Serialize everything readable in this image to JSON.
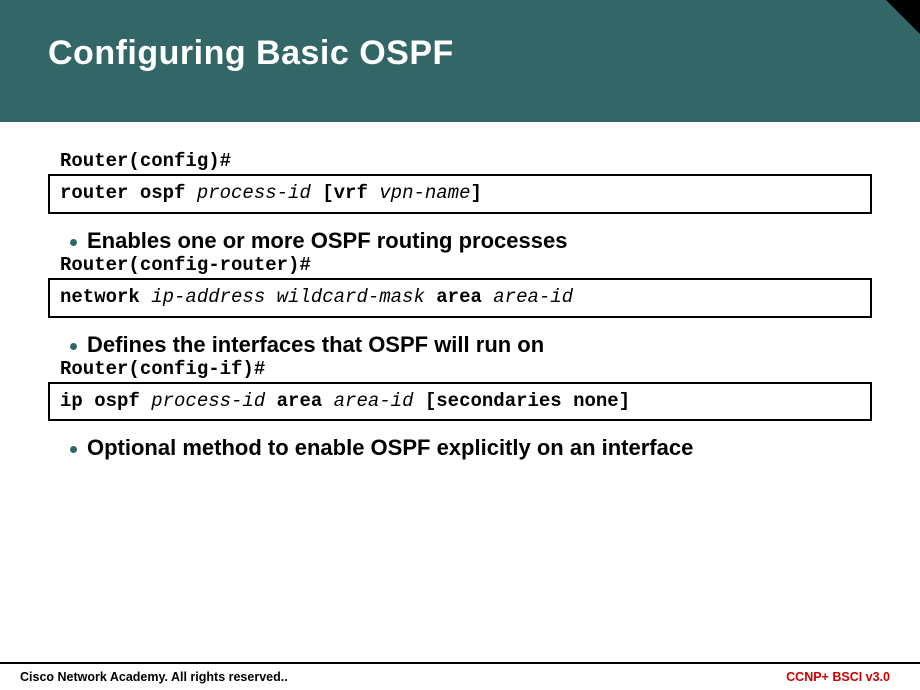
{
  "header": {
    "title": "Configuring  Basic OSPF"
  },
  "blocks": [
    {
      "prompt": "Router(config)#",
      "bullet": "Enables one or more OSPF routing processes"
    },
    {
      "prompt": "Router(config-router)#",
      "bullet": "Defines the interfaces that OSPF will run on"
    },
    {
      "prompt": "Router(config-if)#",
      "bullet": "Optional method to enable OSPF explicitly on an interface"
    }
  ],
  "commands": {
    "c1": {
      "p1": "router ospf ",
      "p2": "process-id ",
      "p3": "[vrf ",
      "p4": "vpn-name",
      "p5": "]"
    },
    "c2": {
      "p1": "network ",
      "p2": "ip-address wildcard-mask ",
      "p3": "area ",
      "p4": "area-id"
    },
    "c3": {
      "p1": "ip ospf ",
      "p2": "process-id ",
      "p3": "area ",
      "p4": "area-id ",
      "p5": "[secondaries none]"
    }
  },
  "footer": {
    "left": "Cisco Network Academy. All rights reserved..",
    "right": "CCNP+ BSCI v3.0"
  },
  "colors": {
    "header_bg": "#336666",
    "bullet_dot": "#336666",
    "footer_right": "#c00"
  }
}
